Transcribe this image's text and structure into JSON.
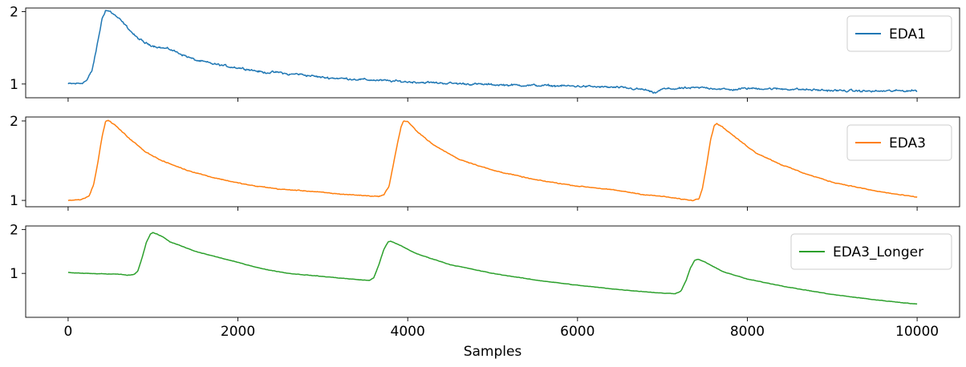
{
  "chart_data": [
    {
      "type": "line",
      "xlim": [
        -500,
        10500
      ],
      "ylim": [
        0.81,
        2.05
      ],
      "yticks": [
        1,
        2
      ],
      "x_tick_labels_visible": false,
      "grid": false,
      "legend_position": "top-right",
      "series": [
        {
          "name": "EDA1",
          "color": "#1f77b4",
          "noise": 0.018,
          "points": [
            [
              0,
              1.0
            ],
            [
              150,
              1.01
            ],
            [
              220,
              1.05
            ],
            [
              280,
              1.18
            ],
            [
              320,
              1.4
            ],
            [
              360,
              1.65
            ],
            [
              400,
              1.9
            ],
            [
              440,
              2.02
            ],
            [
              500,
              2.0
            ],
            [
              600,
              1.9
            ],
            [
              700,
              1.78
            ],
            [
              800,
              1.65
            ],
            [
              900,
              1.57
            ],
            [
              1000,
              1.53
            ],
            [
              1100,
              1.5
            ],
            [
              1200,
              1.48
            ],
            [
              1300,
              1.43
            ],
            [
              1400,
              1.38
            ],
            [
              1500,
              1.33
            ],
            [
              1700,
              1.28
            ],
            [
              1900,
              1.24
            ],
            [
              2100,
              1.21
            ],
            [
              2300,
              1.16
            ],
            [
              2500,
              1.16
            ],
            [
              2600,
              1.13
            ],
            [
              2700,
              1.14
            ],
            [
              3000,
              1.09
            ],
            [
              3500,
              1.06
            ],
            [
              4000,
              1.03
            ],
            [
              4500,
              1.01
            ],
            [
              5000,
              0.99
            ],
            [
              5500,
              0.98
            ],
            [
              6000,
              0.97
            ],
            [
              6500,
              0.95
            ],
            [
              6800,
              0.92
            ],
            [
              6900,
              0.87
            ],
            [
              7000,
              0.93
            ],
            [
              7500,
              0.95
            ],
            [
              7800,
              0.92
            ],
            [
              8000,
              0.94
            ],
            [
              8500,
              0.93
            ],
            [
              9000,
              0.91
            ],
            [
              9500,
              0.9
            ],
            [
              10000,
              0.91
            ]
          ]
        }
      ]
    },
    {
      "type": "line",
      "xlim": [
        -500,
        10500
      ],
      "ylim": [
        0.92,
        2.05
      ],
      "yticks": [
        1,
        2
      ],
      "x_tick_labels_visible": false,
      "grid": false,
      "legend_position": "top-right",
      "series": [
        {
          "name": "EDA3",
          "color": "#ff7f0e",
          "noise": 0.006,
          "points": [
            [
              0,
              1.0
            ],
            [
              150,
              1.01
            ],
            [
              250,
              1.06
            ],
            [
              300,
              1.2
            ],
            [
              350,
              1.48
            ],
            [
              400,
              1.8
            ],
            [
              440,
              1.99
            ],
            [
              470,
              2.01
            ],
            [
              550,
              1.95
            ],
            [
              700,
              1.8
            ],
            [
              900,
              1.62
            ],
            [
              1100,
              1.5
            ],
            [
              1400,
              1.38
            ],
            [
              1700,
              1.29
            ],
            [
              2000,
              1.22
            ],
            [
              2200,
              1.18
            ],
            [
              2300,
              1.17
            ],
            [
              2500,
              1.14
            ],
            [
              2800,
              1.12
            ],
            [
              3200,
              1.08
            ],
            [
              3500,
              1.06
            ],
            [
              3650,
              1.05
            ],
            [
              3720,
              1.07
            ],
            [
              3780,
              1.18
            ],
            [
              3830,
              1.45
            ],
            [
              3880,
              1.72
            ],
            [
              3920,
              1.92
            ],
            [
              3950,
              2.0
            ],
            [
              4000,
              1.99
            ],
            [
              4100,
              1.88
            ],
            [
              4300,
              1.7
            ],
            [
              4600,
              1.52
            ],
            [
              5000,
              1.38
            ],
            [
              5500,
              1.26
            ],
            [
              6000,
              1.18
            ],
            [
              6200,
              1.16
            ],
            [
              6500,
              1.12
            ],
            [
              6800,
              1.07
            ],
            [
              7000,
              1.05
            ],
            [
              7200,
              1.02
            ],
            [
              7350,
              1.0
            ],
            [
              7430,
              1.02
            ],
            [
              7470,
              1.15
            ],
            [
              7520,
              1.45
            ],
            [
              7570,
              1.78
            ],
            [
              7610,
              1.94
            ],
            [
              7640,
              1.97
            ],
            [
              7700,
              1.93
            ],
            [
              7900,
              1.76
            ],
            [
              8100,
              1.6
            ],
            [
              8400,
              1.45
            ],
            [
              8700,
              1.33
            ],
            [
              9000,
              1.23
            ],
            [
              9500,
              1.12
            ],
            [
              9800,
              1.07
            ],
            [
              10000,
              1.04
            ]
          ]
        }
      ]
    },
    {
      "type": "line",
      "xlim": [
        -500,
        10500
      ],
      "ylim": [
        0.0,
        2.08
      ],
      "yticks": [
        1,
        2
      ],
      "xticks": [
        0,
        2000,
        4000,
        6000,
        8000,
        10000
      ],
      "x_tick_labels_visible": true,
      "xlabel": "Samples",
      "grid": false,
      "legend_position": "top-right",
      "series": [
        {
          "name": "EDA3_Longer",
          "color": "#2ca02c",
          "noise": 0.006,
          "points": [
            [
              0,
              1.02
            ],
            [
              200,
              1.0
            ],
            [
              400,
              0.99
            ],
            [
              600,
              0.98
            ],
            [
              700,
              0.96
            ],
            [
              770,
              0.97
            ],
            [
              820,
              1.05
            ],
            [
              870,
              1.35
            ],
            [
              920,
              1.7
            ],
            [
              970,
              1.9
            ],
            [
              1000,
              1.93
            ],
            [
              1100,
              1.85
            ],
            [
              1200,
              1.72
            ],
            [
              1500,
              1.5
            ],
            [
              2000,
              1.25
            ],
            [
              2300,
              1.1
            ],
            [
              2600,
              1.0
            ],
            [
              3000,
              0.93
            ],
            [
              3400,
              0.86
            ],
            [
              3550,
              0.84
            ],
            [
              3600,
              0.9
            ],
            [
              3660,
              1.2
            ],
            [
              3720,
              1.55
            ],
            [
              3770,
              1.72
            ],
            [
              3800,
              1.73
            ],
            [
              3900,
              1.65
            ],
            [
              4100,
              1.45
            ],
            [
              4500,
              1.2
            ],
            [
              5000,
              1.0
            ],
            [
              5500,
              0.85
            ],
            [
              6000,
              0.73
            ],
            [
              6500,
              0.63
            ],
            [
              7000,
              0.55
            ],
            [
              7150,
              0.54
            ],
            [
              7220,
              0.6
            ],
            [
              7280,
              0.85
            ],
            [
              7330,
              1.12
            ],
            [
              7380,
              1.3
            ],
            [
              7420,
              1.32
            ],
            [
              7500,
              1.26
            ],
            [
              7700,
              1.05
            ],
            [
              8000,
              0.87
            ],
            [
              8500,
              0.68
            ],
            [
              9000,
              0.52
            ],
            [
              9500,
              0.4
            ],
            [
              10000,
              0.3
            ]
          ]
        }
      ]
    }
  ]
}
